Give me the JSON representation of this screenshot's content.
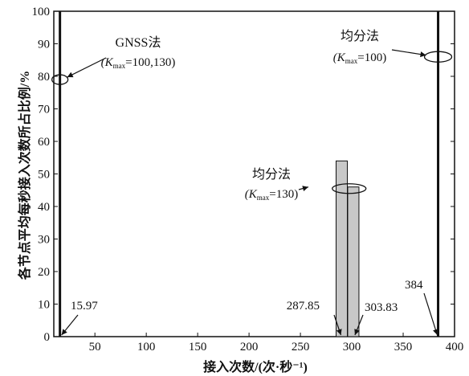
{
  "chart_data": {
    "type": "bar",
    "xlabel": "接入次数/(次·秒⁻¹)",
    "ylabel": "各节点平均每秒接入次数所占比例/%",
    "xlim": [
      10,
      400
    ],
    "ylim": [
      0,
      100
    ],
    "x_ticks": [
      50,
      100,
      150,
      200,
      250,
      300,
      350,
      400
    ],
    "y_ticks": [
      0,
      10,
      20,
      30,
      40,
      50,
      60,
      70,
      80,
      90,
      100
    ],
    "series": [
      {
        "name": "GNSS法",
        "subtitle": "(Kmax=100,130)",
        "x": 15.97,
        "value": 100,
        "style": "thick-line"
      },
      {
        "name": "均分法",
        "subtitle": "(Kmax=130)",
        "x": 287.85,
        "value": 54,
        "style": "bar"
      },
      {
        "name": "均分法",
        "subtitle": "(Kmax=130)",
        "x": 303.83,
        "value": 46,
        "style": "bar"
      },
      {
        "name": "均分法",
        "subtitle": "(Kmax=100)",
        "x": 384,
        "value": 100,
        "style": "thick-line"
      }
    ],
    "value_labels": [
      "15.97",
      "287.85",
      "303.83",
      "384"
    ],
    "annotations": [
      {
        "title": "GNSS法",
        "text": "(K",
        "sub": "max",
        "rest": "=100,130)"
      },
      {
        "title": "均分法",
        "text": "(K",
        "sub": "max",
        "rest": "=100)"
      },
      {
        "title": "均分法",
        "text": "(K",
        "sub": "max",
        "rest": "=130)"
      }
    ],
    "grid": false,
    "bar_color": "#c8c8c8",
    "line_color": "#111111"
  }
}
